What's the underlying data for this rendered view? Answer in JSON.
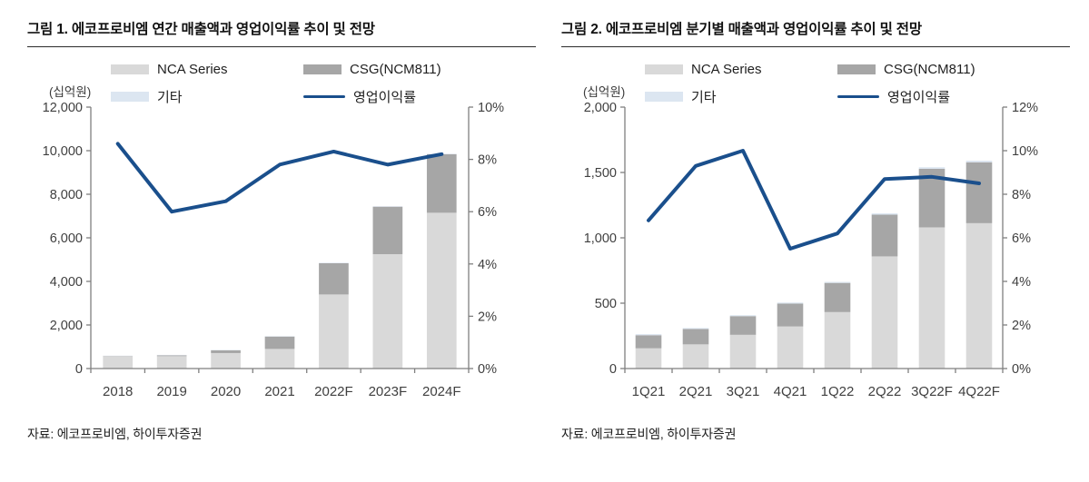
{
  "colors": {
    "nca": "#d9d9d9",
    "csg": "#a6a6a6",
    "etc": "#dce6f1",
    "line": "#1a4f8c",
    "axis": "#7f7f7f",
    "tick_text": "#3f3f3f"
  },
  "chart_data": [
    {
      "type": "bar",
      "subtype": "stacked-bar-with-line",
      "title": "그림 1. 에코프로비엠 연간 매출액과 영업이익률 추이 및 전망",
      "unit_label": "(십억원)",
      "source": "자료: 에코프로비엠, 하이투자증권",
      "categories": [
        "2018",
        "2019",
        "2020",
        "2021",
        "2022F",
        "2023F",
        "2024F"
      ],
      "series": [
        {
          "name": "NCA Series",
          "type": "bar",
          "values": [
            570,
            570,
            710,
            900,
            3400,
            5250,
            7150
          ]
        },
        {
          "name": "CSG(NCM811)",
          "type": "bar",
          "values": [
            10,
            36,
            130,
            570,
            1435,
            2180,
            2690
          ]
        },
        {
          "name": "기타",
          "type": "bar",
          "values": [
            10,
            10,
            15,
            16,
            20,
            20,
            20
          ]
        },
        {
          "name": "영업이익률",
          "type": "line",
          "axis": "right",
          "values": [
            8.6,
            6.0,
            6.4,
            7.8,
            8.3,
            7.8,
            8.2
          ]
        }
      ],
      "legend": [
        "NCA Series",
        "CSG(NCM811)",
        "기타",
        "영업이익률"
      ],
      "left_axis": {
        "min": 0,
        "max": 12000,
        "tick_step": 2000,
        "tick_labels": [
          "0",
          "2,000",
          "4,000",
          "6,000",
          "8,000",
          "10,000",
          "12,000"
        ]
      },
      "right_axis": {
        "min": 0,
        "max": 10,
        "tick_step": 2,
        "tick_labels": [
          "0%",
          "2%",
          "4%",
          "6%",
          "8%",
          "10%"
        ]
      },
      "grid": "off",
      "legend_position": "top"
    },
    {
      "type": "bar",
      "subtype": "stacked-bar-with-line",
      "title": "그림 2. 에코프로비엠 분기별 매출액과 영업이익률 추이 및 전망",
      "unit_label": "(십억원)",
      "source": "자료: 에코프로비엠, 하이투자증권",
      "categories": [
        "1Q21",
        "2Q21",
        "3Q21",
        "4Q21",
        "1Q22",
        "2Q22",
        "3Q22F",
        "4Q22F"
      ],
      "series": [
        {
          "name": "NCA Series",
          "type": "bar",
          "values": [
            155,
            185,
            258,
            322,
            432,
            858,
            1080,
            1112
          ]
        },
        {
          "name": "CSG(NCM811)",
          "type": "bar",
          "values": [
            100,
            118,
            143,
            175,
            223,
            319,
            448,
            466
          ]
        },
        {
          "name": "기타",
          "type": "bar",
          "values": [
            8,
            7,
            7,
            8,
            8,
            10,
            12,
            12
          ]
        },
        {
          "name": "영업이익률",
          "type": "line",
          "axis": "right",
          "values": [
            6.8,
            9.3,
            10.0,
            5.5,
            6.2,
            8.7,
            8.8,
            8.5
          ]
        }
      ],
      "legend": [
        "NCA Series",
        "CSG(NCM811)",
        "기타",
        "영업이익률"
      ],
      "left_axis": {
        "min": 0,
        "max": 2000,
        "tick_step": 500,
        "tick_labels": [
          "0",
          "500",
          "1,000",
          "1,500",
          "2,000"
        ]
      },
      "right_axis": {
        "min": 0,
        "max": 12,
        "tick_step": 2,
        "tick_labels": [
          "0%",
          "2%",
          "4%",
          "6%",
          "8%",
          "10%",
          "12%"
        ]
      },
      "grid": "off",
      "legend_position": "top"
    }
  ]
}
